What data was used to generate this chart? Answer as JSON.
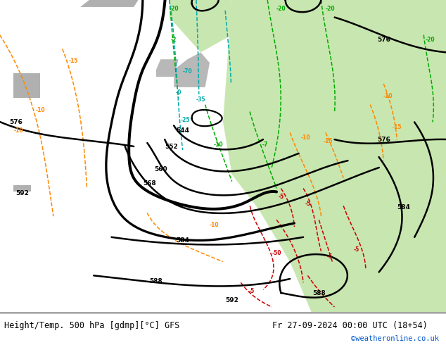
{
  "title_left": "Height/Temp. 500 hPa [gdmp][°C] GFS",
  "title_right": "Fr 27-09-2024 00:00 UTC (18+54)",
  "watermark": "©weatheronline.co.uk",
  "bg_gray": "#c8c8c8",
  "land_green": "#c8e6b0",
  "bottom_white": "#ffffff",
  "text_black": "#000000",
  "link_blue": "#0055cc",
  "black_lw": 1.8,
  "color_lw": 1.1,
  "figsize": [
    6.34,
    4.9
  ],
  "dpi": 100
}
